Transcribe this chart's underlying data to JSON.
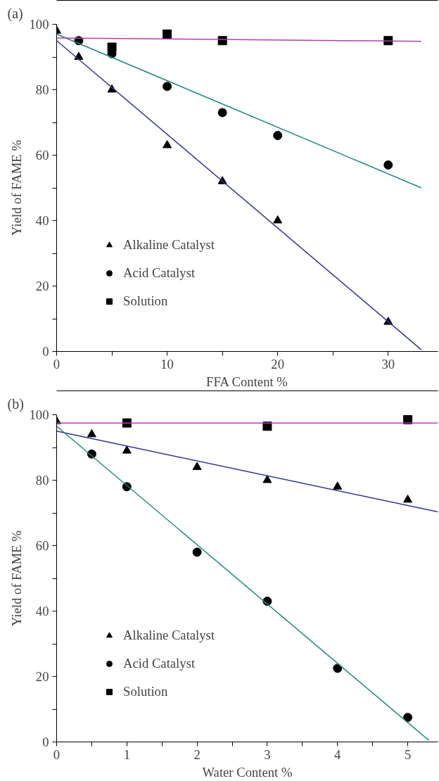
{
  "chart_data": [
    {
      "type": "scatter",
      "title": "(a)",
      "xlabel": "FFA Content %",
      "ylabel": "Yield of FAME %",
      "xlim": [
        0,
        34.5
      ],
      "ylim": [
        0,
        100
      ],
      "xticks": [
        0,
        {
          "value": 5,
          "label": null
        },
        10,
        {
          "value": 15,
          "label": null
        },
        20,
        {
          "value": 25,
          "label": null
        },
        30
      ],
      "yticks": [
        0,
        {
          "value": 10,
          "label": null
        },
        20,
        {
          "value": 30,
          "label": null
        },
        40,
        {
          "value": 50,
          "label": null
        },
        60,
        {
          "value": 70,
          "label": null
        },
        80,
        {
          "value": 90,
          "label": null
        },
        100
      ],
      "legend": "bottom left",
      "series": [
        {
          "name": "Alkaline Catalyst",
          "marker": "triangle",
          "color": "#000000",
          "x": [
            0,
            2,
            5,
            10,
            15,
            20,
            30
          ],
          "values": [
            98,
            90,
            80,
            63,
            52,
            40,
            9
          ]
        },
        {
          "name": "Acid Catalyst",
          "marker": "circle",
          "color": "#000000",
          "x": [
            2,
            5,
            10,
            15,
            20,
            30
          ],
          "values": [
            95,
            91,
            81,
            73,
            66,
            57
          ]
        },
        {
          "name": "Solution",
          "marker": "square",
          "color": "#000000",
          "x": [
            5,
            10,
            15,
            30
          ],
          "values": [
            93,
            97,
            95,
            95
          ]
        },
        {
          "type": "line",
          "marker": "none",
          "color": "#333399",
          "x": [
            0,
            33
          ],
          "values": [
            95,
            0.5
          ]
        },
        {
          "type": "line",
          "marker": "none",
          "color": "#1a8a80",
          "x": [
            0,
            33
          ],
          "values": [
            97,
            50
          ]
        },
        {
          "type": "line",
          "marker": "none",
          "color": "#b040b0",
          "x": [
            0,
            33
          ],
          "values": [
            95.8,
            94.8
          ]
        }
      ]
    },
    {
      "type": "scatter",
      "title": "(b)",
      "xlabel": "Water Content %",
      "ylabel": "Yield of FAME %",
      "xlim": [
        0,
        5.43
      ],
      "ylim": [
        0,
        100
      ],
      "xticks": [
        0,
        {
          "value": 0.5,
          "label": null
        },
        1,
        {
          "value": 1.5,
          "label": null
        },
        2,
        {
          "value": 2.5,
          "label": null
        },
        3,
        {
          "value": 3.5,
          "label": null
        },
        4,
        {
          "value": 4.5,
          "label": null
        },
        5
      ],
      "yticks": [
        0,
        {
          "value": 10,
          "label": null
        },
        20,
        {
          "value": 30,
          "label": null
        },
        40,
        {
          "value": 50,
          "label": null
        },
        60,
        {
          "value": 70,
          "label": null
        },
        80,
        {
          "value": 90,
          "label": null
        },
        100
      ],
      "legend": "bottom left",
      "series": [
        {
          "name": "Alkaline Catalyst",
          "marker": "triangle",
          "color": "#000000",
          "x": [
            0,
            0.5,
            1,
            2,
            3,
            4,
            5
          ],
          "values": [
            98,
            94,
            89,
            84,
            80,
            78,
            74
          ]
        },
        {
          "name": "Acid Catalyst",
          "marker": "circle",
          "color": "#000000",
          "x": [
            0.5,
            1,
            2,
            3,
            4,
            5
          ],
          "values": [
            88,
            78,
            58,
            43,
            22.5,
            7.5
          ]
        },
        {
          "name": "Solution",
          "marker": "square",
          "color": "#000000",
          "x": [
            1,
            3,
            5
          ],
          "values": [
            97.5,
            96.5,
            98.5
          ]
        },
        {
          "type": "line",
          "marker": "none",
          "color": "#333399",
          "x": [
            0,
            5.43
          ],
          "values": [
            95,
            70.3
          ]
        },
        {
          "type": "line",
          "marker": "none",
          "color": "#1a8a80",
          "x": [
            0,
            5.3
          ],
          "values": [
            96.5,
            0.5
          ]
        },
        {
          "type": "line",
          "marker": "none",
          "color": "#b040b0",
          "x": [
            0,
            5.43
          ],
          "values": [
            97.5,
            97.5
          ]
        }
      ]
    }
  ]
}
